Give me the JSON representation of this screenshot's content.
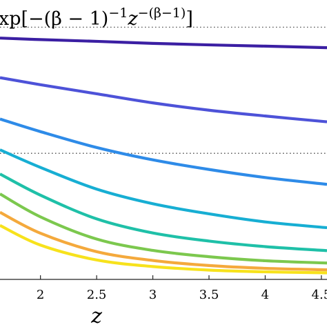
{
  "chart_data": {
    "type": "line",
    "title": "xp[−(β − 1)^{−1} z^{−(β−1)}]",
    "xlabel": "z",
    "ylabel": "",
    "xlim": [
      1.64,
      4.55
    ],
    "ylim": [
      0,
      1.015
    ],
    "grid": false,
    "xticks": [
      2,
      2.5,
      3,
      3.5,
      4,
      4.5
    ],
    "xtick_labels": [
      "2",
      "2.5",
      "3",
      "3.5",
      "4",
      "4.5"
    ],
    "reference_lines": [
      {
        "y": 1.0,
        "style": "dotted",
        "color": "#555555"
      },
      {
        "y": 0.5,
        "style": "dotted",
        "color": "#555555"
      }
    ],
    "series": [
      {
        "color": "#3b1fa3",
        "x": [
          1.64,
          2.0,
          2.5,
          3.0,
          3.5,
          4.0,
          4.55
        ],
        "y": [
          0.957,
          0.951,
          0.944,
          0.936,
          0.93,
          0.925,
          0.919
        ]
      },
      {
        "color": "#4d52d8",
        "x": [
          1.64,
          2.0,
          2.5,
          3.0,
          3.5,
          4.0,
          4.55
        ],
        "y": [
          0.8,
          0.772,
          0.736,
          0.7,
          0.671,
          0.648,
          0.625
        ]
      },
      {
        "color": "#2e8be8",
        "x": [
          1.64,
          2.0,
          2.5,
          3.0,
          3.5,
          4.0,
          4.55
        ],
        "y": [
          0.636,
          0.586,
          0.523,
          0.474,
          0.436,
          0.404,
          0.377
        ]
      },
      {
        "color": "#17aed3",
        "x": [
          1.64,
          2.0,
          2.5,
          3.0,
          3.5,
          4.0,
          4.55
        ],
        "y": [
          0.514,
          0.444,
          0.358,
          0.3,
          0.26,
          0.228,
          0.205
        ]
      },
      {
        "color": "#1fc0a8",
        "x": [
          1.64,
          2.0,
          2.5,
          3.0,
          3.5,
          4.0,
          4.55
        ],
        "y": [
          0.418,
          0.334,
          0.24,
          0.184,
          0.152,
          0.13,
          0.114
        ]
      },
      {
        "color": "#7cc84e",
        "x": [
          1.64,
          2.0,
          2.5,
          3.0,
          3.5,
          4.0,
          4.55
        ],
        "y": [
          0.339,
          0.248,
          0.16,
          0.115,
          0.09,
          0.074,
          0.065
        ]
      },
      {
        "color": "#f4a93c",
        "x": [
          1.64,
          2.0,
          2.5,
          3.0,
          3.5,
          4.0,
          4.55
        ],
        "y": [
          0.266,
          0.183,
          0.11,
          0.075,
          0.055,
          0.044,
          0.038
        ]
      },
      {
        "color": "#f7e21c",
        "x": [
          1.64,
          2.0,
          2.5,
          3.0,
          3.5,
          4.0,
          4.55
        ],
        "y": [
          0.214,
          0.136,
          0.077,
          0.051,
          0.037,
          0.03,
          0.026
        ]
      }
    ]
  }
}
